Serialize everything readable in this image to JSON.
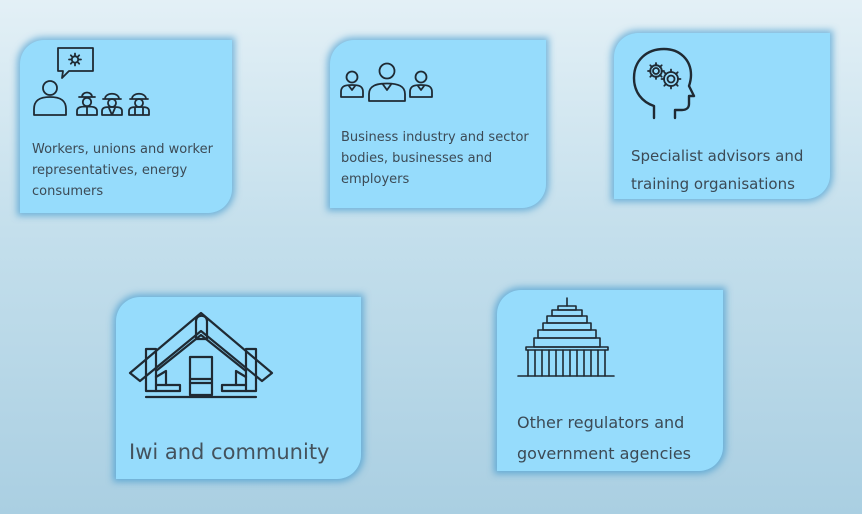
{
  "cards": [
    {
      "label": "Workers, unions and worker representatives, energy consumers",
      "icon": "workers-group-icon"
    },
    {
      "label": "Business industry and sector bodies, businesses and employers",
      "icon": "business-people-icon"
    },
    {
      "label": "Specialist advisors and training organisations",
      "icon": "head-gears-icon"
    },
    {
      "label": "Iwi and community",
      "icon": "wharenui-meeting-house-icon"
    },
    {
      "label": "Other regulators and government agencies",
      "icon": "beehive-parliament-icon"
    }
  ],
  "colors": {
    "card_fill": "#96dcfc",
    "card_glow": "#288cc8",
    "icon_stroke": "#1f2a33",
    "text": "#3c4a55"
  }
}
